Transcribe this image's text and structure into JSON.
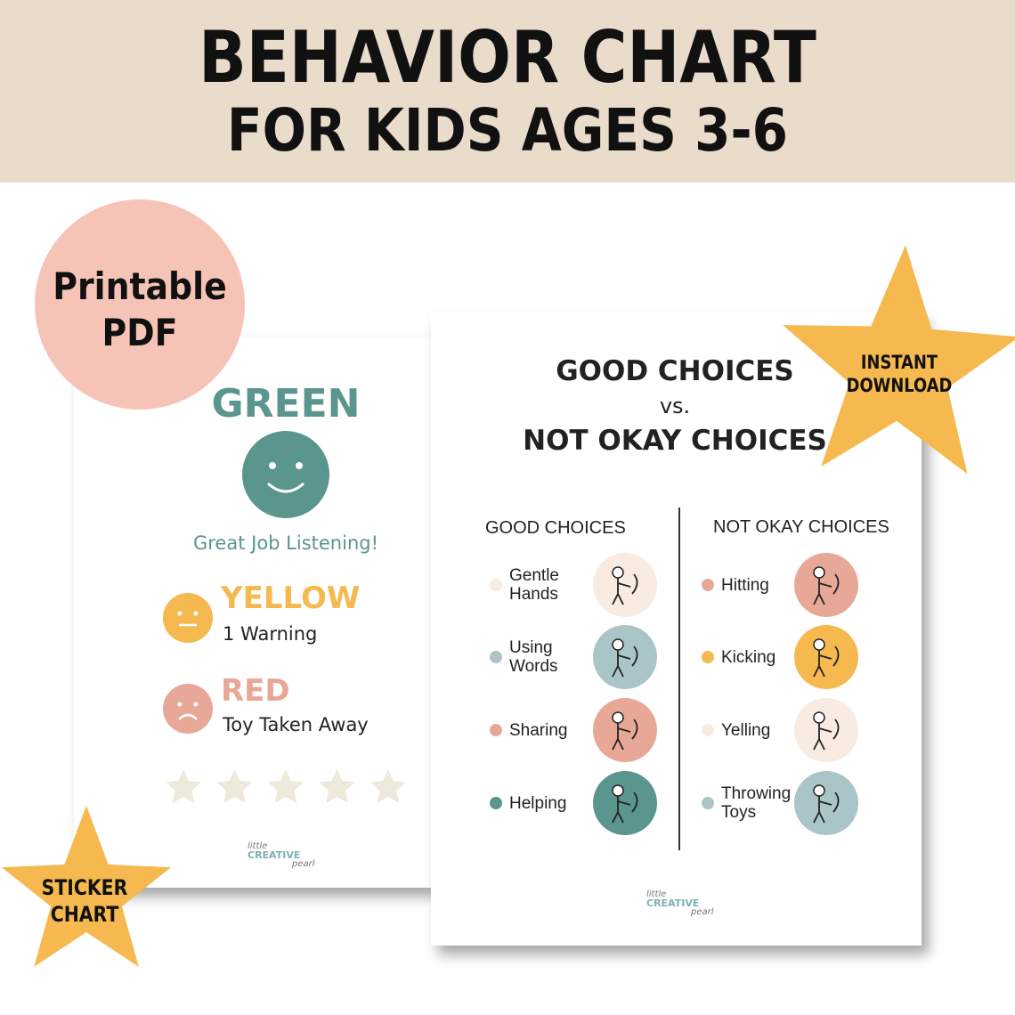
{
  "header": {
    "title": "BEHAVIOR CHART",
    "subtitle": "FOR KIDS AGES 3-6"
  },
  "badges": {
    "printable": [
      "Printable",
      "PDF"
    ],
    "instant": [
      "INSTANT",
      "DOWNLOAD"
    ],
    "sticker": [
      "STICKER",
      "CHART"
    ]
  },
  "left_card": {
    "green": {
      "title": "GREEN",
      "caption": "Great Job Listening!"
    },
    "yellow": {
      "title": "YELLOW",
      "caption": "1 Warning"
    },
    "red": {
      "title": "RED",
      "caption": "Toy Taken Away"
    },
    "logo": [
      "little",
      "CREATIVE",
      "pearl"
    ]
  },
  "right_card": {
    "title": [
      "GOOD CHOICES",
      "vs.",
      "NOT OKAY CHOICES"
    ],
    "good": {
      "heading": "GOOD CHOICES",
      "items": [
        [
          "Gentle",
          "Hands"
        ],
        [
          "Using",
          "Words"
        ],
        [
          "Sharing"
        ],
        [
          "Helping"
        ]
      ]
    },
    "not_okay": {
      "heading": "NOT OKAY CHOICES",
      "items": [
        [
          "Hitting"
        ],
        [
          "Kicking"
        ],
        [
          "Yelling"
        ],
        [
          "Throwing",
          "Toys"
        ]
      ]
    },
    "logo": [
      "little",
      "CREATIVE",
      "pearl"
    ]
  }
}
